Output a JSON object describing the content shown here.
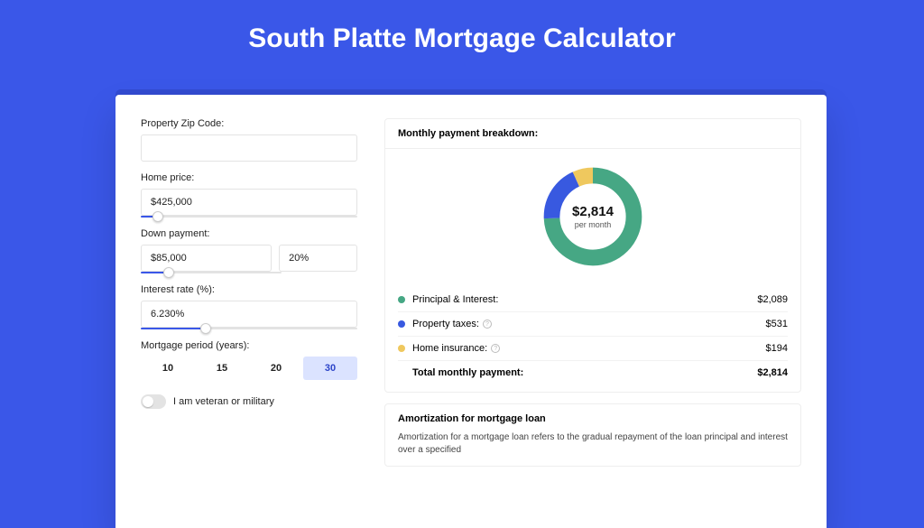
{
  "page": {
    "title": "South Platte Mortgage Calculator",
    "background_color": "#3a57e8"
  },
  "form": {
    "zip": {
      "label": "Property Zip Code:",
      "value": ""
    },
    "home_price": {
      "label": "Home price:",
      "value": "$425,000",
      "slider_pct": 8
    },
    "down_payment": {
      "label": "Down payment:",
      "amount": "$85,000",
      "percent": "20%",
      "slider_pct": 20
    },
    "interest": {
      "label": "Interest rate (%):",
      "value": "6.230%",
      "slider_pct": 30
    },
    "period": {
      "label": "Mortgage period (years):",
      "options": [
        "10",
        "15",
        "20",
        "30"
      ],
      "active_index": 3
    },
    "veteran": {
      "label": "I am veteran or military",
      "on": false
    }
  },
  "breakdown": {
    "title": "Monthly payment breakdown:",
    "center_value": "$2,814",
    "center_label": "per month",
    "donut": {
      "series": [
        {
          "key": "principal_interest",
          "value": 2089,
          "color": "#46a784"
        },
        {
          "key": "property_taxes",
          "value": 531,
          "color": "#3859e0"
        },
        {
          "key": "home_insurance",
          "value": 194,
          "color": "#efc85e"
        }
      ],
      "ring_width": 16,
      "background_color": "#ffffff"
    },
    "rows": [
      {
        "label": "Principal & Interest:",
        "value": "$2,089",
        "dot_color": "#46a784",
        "help": false
      },
      {
        "label": "Property taxes:",
        "value": "$531",
        "dot_color": "#3859e0",
        "help": true
      },
      {
        "label": "Home insurance:",
        "value": "$194",
        "dot_color": "#efc85e",
        "help": true
      }
    ],
    "total": {
      "label": "Total monthly payment:",
      "value": "$2,814"
    }
  },
  "amortization": {
    "title": "Amortization for mortgage loan",
    "body": "Amortization for a mortgage loan refers to the gradual repayment of the loan principal and interest over a specified"
  }
}
